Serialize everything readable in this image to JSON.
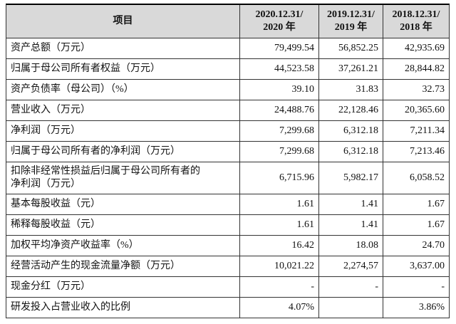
{
  "table": {
    "header": [
      "项目",
      [
        "2020.12.31/",
        "2020 年"
      ],
      [
        "2019.12.31/",
        "2019 年"
      ],
      [
        "2018.12.31/",
        "2018 年"
      ]
    ],
    "rows": [
      [
        "资产总额（万元）",
        "79,499.54",
        "56,852.25",
        "42,935.69"
      ],
      [
        "归属于母公司所有者权益（万元）",
        "44,523.58",
        "37,261.21",
        "28,844.82"
      ],
      [
        "资产负债率（母公司）（%）",
        "39.10",
        "31.83",
        "32.73"
      ],
      [
        "营业收入（万元）",
        "24,488.76",
        "22,128.46",
        "20,365.60"
      ],
      [
        "净利润（万元）",
        "7,299.68",
        "6,312.18",
        "7,211.34"
      ],
      [
        "归属于母公司所有者的净利润（万元）",
        "7,299.68",
        "6,312.18",
        "7,213.46"
      ],
      [
        [
          "扣除非经常性损益后归属于母公司所有者的",
          "净利润（万元）"
        ],
        "6,715.96",
        "5,982.17",
        "6,058.52"
      ],
      [
        "基本每股收益（元）",
        "1.61",
        "1.41",
        "1.67"
      ],
      [
        "稀释每股收益（元）",
        "1.61",
        "1.41",
        "1.67"
      ],
      [
        "加权平均净资产收益率（%）",
        "16.42",
        "18.08",
        "24.70"
      ],
      [
        "经营活动产生的现金流量净额（万元）",
        "10,021.22",
        "2,274,57",
        "3,637.00"
      ],
      [
        "现金分红（万元）",
        "-",
        "-",
        "-"
      ],
      [
        "研发投入占营业收入的比例",
        "4.07%",
        null,
        "3.86%"
      ]
    ]
  }
}
